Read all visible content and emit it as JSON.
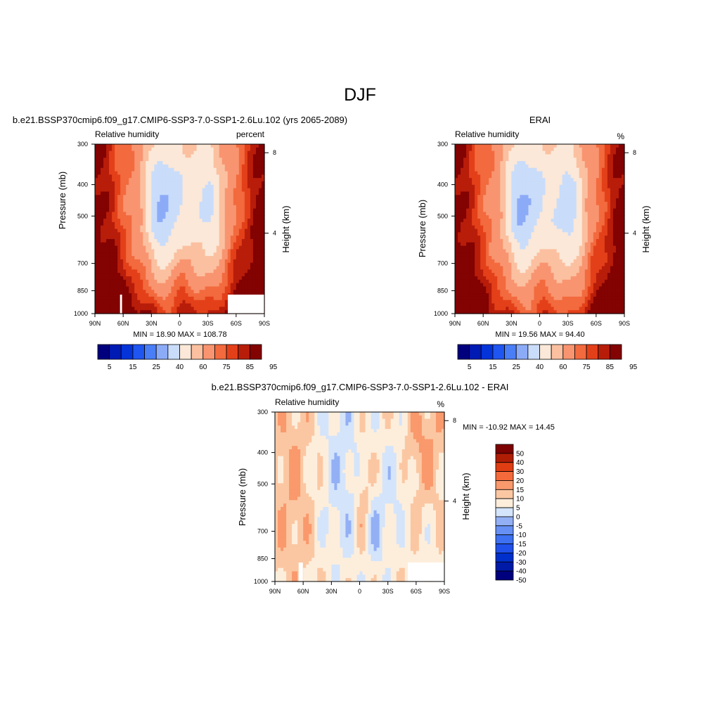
{
  "figure": {
    "title": "DJF"
  },
  "colors": {
    "bar12": [
      "#00007f",
      "#001ab4",
      "#0333d9",
      "#1f55f0",
      "#4a7ef7",
      "#8cabf7",
      "#c9dcfa",
      "#fbe8d8",
      "#fbc0a0",
      "#f99470",
      "#f26a3e",
      "#e3401a",
      "#b81d0a",
      "#830202"
    ],
    "diff14": [
      "#00007f",
      "#001aa8",
      "#0030cc",
      "#1f50ea",
      "#3d71f2",
      "#6690f4",
      "#93b0f5",
      "#d4e4fa",
      "#fdeedc",
      "#fbc7a2",
      "#f9996c",
      "#f56a3a",
      "#e03e12",
      "#b01d05",
      "#7d0202"
    ]
  },
  "chart_data": [
    {
      "type": "heatmap",
      "name": "model",
      "title": "b.e21.BSSP370cmip6.f09_g17.CMIP6-SSP3-7.0-SSP1-2.6Lu.102 (yrs 2065-2089)",
      "left_label": "Relative humidity",
      "right_label": "percent",
      "ylabel": "Pressure (mb)",
      "right_ylabel": "Height (km)",
      "x_ticks": [
        "90N",
        "60N",
        "30N",
        "0",
        "30S",
        "60S",
        "90S"
      ],
      "y_ticks": [
        300,
        400,
        500,
        700,
        850,
        1000
      ],
      "height_ticks": [
        8,
        4
      ],
      "stats": "MIN =  18.90  MAX = 108.78",
      "colorbar_labels": [
        "5",
        "15",
        "25",
        "40",
        "60",
        "75",
        "85",
        "95"
      ],
      "grid": false
    },
    {
      "type": "heatmap",
      "name": "obs",
      "title": "ERAI",
      "left_label": "Relative humidity",
      "right_label": "%",
      "ylabel": "Pressure (mb)",
      "right_ylabel": "Height (km)",
      "x_ticks": [
        "90N",
        "60N",
        "30N",
        "0",
        "30S",
        "60S",
        "90S"
      ],
      "y_ticks": [
        300,
        400,
        500,
        700,
        850,
        1000
      ],
      "height_ticks": [
        8,
        4
      ],
      "stats": "MIN =  19.56  MAX =  94.40",
      "colorbar_labels": [
        "5",
        "15",
        "25",
        "40",
        "60",
        "75",
        "85",
        "95"
      ],
      "grid": false
    },
    {
      "type": "heatmap",
      "name": "difference",
      "title": "b.e21.BSSP370cmip6.f09_g17.CMIP6-SSP3-7.0-SSP1-2.6Lu.102 - ERAI",
      "left_label": "Relative humidity",
      "right_label": "%",
      "ylabel": "Pressure (mb)",
      "right_ylabel": "Height (km)",
      "x_ticks": [
        "90N",
        "60N",
        "30N",
        "0",
        "30S",
        "60S",
        "90S"
      ],
      "y_ticks": [
        300,
        400,
        500,
        700,
        850,
        1000
      ],
      "height_ticks": [
        8,
        4
      ],
      "stats": "MIN = -10.92  MAX =  14.45",
      "colorbar_labels": [
        "50",
        "40",
        "30",
        "20",
        "15",
        "10",
        "5",
        "0",
        "-5",
        "-10",
        "-15",
        "-20",
        "-30",
        "-40",
        "-50"
      ],
      "grid": false
    }
  ]
}
